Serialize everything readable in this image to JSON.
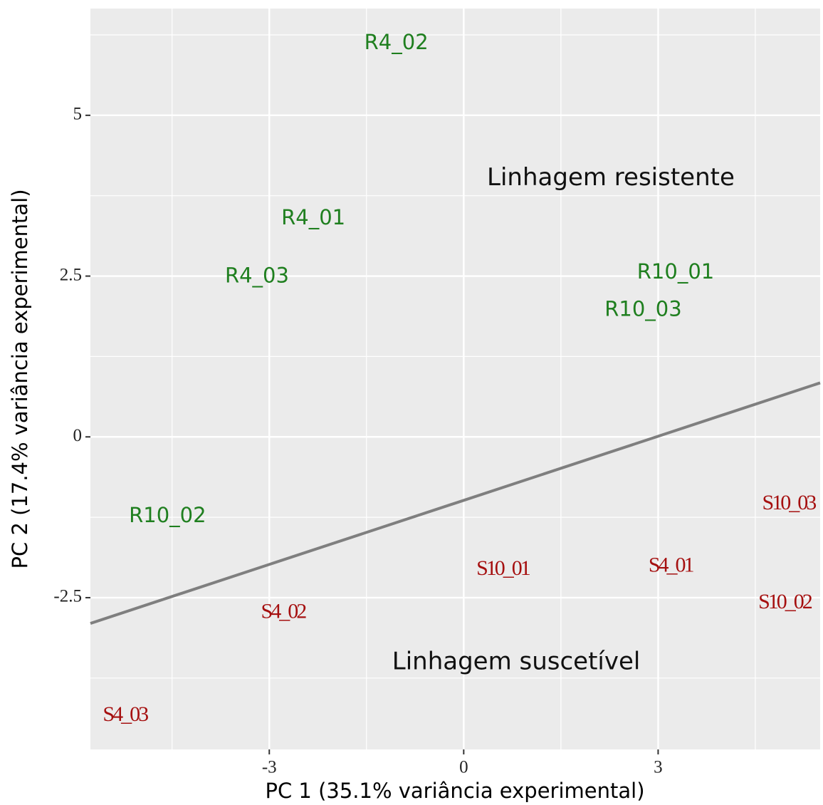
{
  "chart_data": {
    "type": "scatter",
    "x_label": "PC 1 (35.1% variância experimental)",
    "y_label": "PC 2 (17.4% variância experimental)",
    "xlim": [
      -5.76,
      5.5
    ],
    "ylim": [
      -4.86,
      6.66
    ],
    "xticks": [
      -3,
      0,
      3
    ],
    "yticks": [
      -2.5,
      0,
      2.5,
      5
    ],
    "grid": true,
    "series": [
      {
        "color": "#1f7f1f",
        "labels": [
          "R4_02",
          "R4_01",
          "R4_03",
          "R10_01",
          "R10_03",
          "R10_02"
        ],
        "x": [
          -1.04,
          -2.32,
          -3.19,
          3.27,
          2.77,
          -4.57
        ],
        "values": [
          6.12,
          3.39,
          2.49,
          2.55,
          1.97,
          -1.24
        ]
      },
      {
        "color": "#a50f0f",
        "labels": [
          "S10_01",
          "S4_01",
          "S10_03",
          "S10_02",
          "S4_02",
          "S4_03"
        ],
        "x": [
          0.6,
          3.19,
          5.01,
          4.95,
          -2.79,
          -5.23
        ],
        "values": [
          -2.07,
          -2.02,
          -1.05,
          -2.59,
          -2.74,
          -4.34
        ]
      }
    ],
    "line": {
      "color": "#7f7f7f",
      "x": [
        -5.76,
        5.5
      ],
      "values": [
        -2.9,
        0.84
      ]
    },
    "annotations": [
      {
        "text": "Linhagem resistente",
        "x": 2.27,
        "y": 4.02
      },
      {
        "text": "Linhagem suscetível",
        "x": 0.81,
        "y": -3.51
      }
    ]
  }
}
